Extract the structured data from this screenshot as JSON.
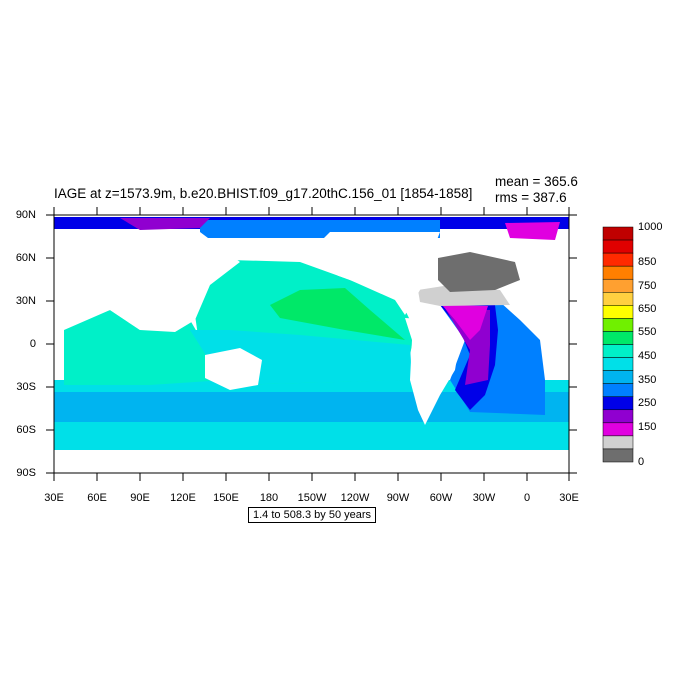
{
  "title": "IAGE at z=1573.9m, b.e20.BHIST.f09_g17.20thC.156_01 [1854-1858]",
  "stats": {
    "mean": "mean = 365.6",
    "rms": "rms = 387.6"
  },
  "info_box": "1.4 to 508.3 by 50 years",
  "axes": {
    "y_ticks": [
      "90N",
      "60N",
      "30N",
      "0",
      "30S",
      "60S",
      "90S"
    ],
    "x_ticks": [
      "30E",
      "60E",
      "90E",
      "120E",
      "150E",
      "180",
      "150W",
      "120W",
      "90W",
      "60W",
      "30W",
      "0",
      "30E"
    ]
  },
  "colorbar": {
    "labels": [
      "1000",
      "850",
      "750",
      "650",
      "550",
      "450",
      "350",
      "250",
      "150",
      "0"
    ],
    "colors": [
      "#c00000",
      "#e00000",
      "#ff2a00",
      "#ff7f00",
      "#ffa030",
      "#ffd040",
      "#ffff00",
      "#70f000",
      "#00e868",
      "#00f0c8",
      "#00e0e8",
      "#00b4f0",
      "#0080ff",
      "#0000e8",
      "#9000d0",
      "#e000e0",
      "#d0d0d0",
      "#6e6e6e"
    ]
  },
  "colors": {
    "land": "#ffffff",
    "background": "#ffffff"
  }
}
